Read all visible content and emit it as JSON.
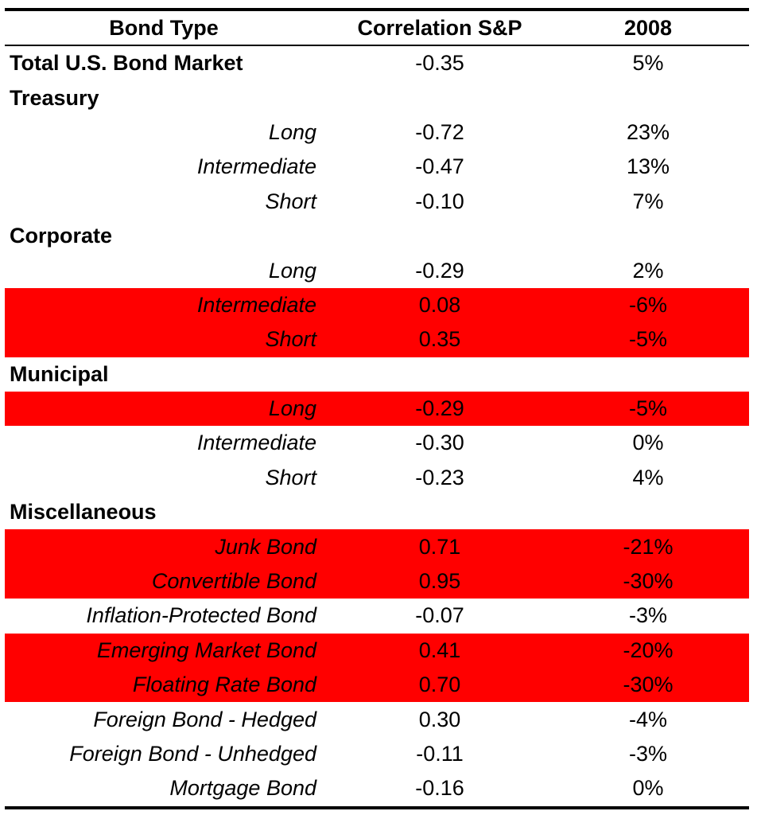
{
  "table": {
    "headers": {
      "bond_type": "Bond Type",
      "correlation": "Correlation S&P",
      "year": "2008"
    },
    "rows": [
      {
        "kind": "group",
        "name": "Total U.S. Bond Market",
        "correlation": "-0.35",
        "return": "5%",
        "highlighted": false
      },
      {
        "kind": "group",
        "name": "Treasury",
        "correlation": "",
        "return": "",
        "highlighted": false
      },
      {
        "kind": "sub",
        "name": "Long",
        "correlation": "-0.72",
        "return": "23%",
        "highlighted": false
      },
      {
        "kind": "sub",
        "name": "Intermediate",
        "correlation": "-0.47",
        "return": "13%",
        "highlighted": false
      },
      {
        "kind": "sub",
        "name": "Short",
        "correlation": "-0.10",
        "return": "7%",
        "highlighted": false
      },
      {
        "kind": "group",
        "name": "Corporate",
        "correlation": "",
        "return": "",
        "highlighted": false
      },
      {
        "kind": "sub",
        "name": "Long",
        "correlation": "-0.29",
        "return": "2%",
        "highlighted": false
      },
      {
        "kind": "sub",
        "name": "Intermediate",
        "correlation": "0.08",
        "return": "-6%",
        "highlighted": true
      },
      {
        "kind": "sub",
        "name": "Short",
        "correlation": "0.35",
        "return": "-5%",
        "highlighted": true
      },
      {
        "kind": "group",
        "name": "Municipal",
        "correlation": "",
        "return": "",
        "highlighted": false
      },
      {
        "kind": "sub",
        "name": "Long",
        "correlation": "-0.29",
        "return": "-5%",
        "highlighted": true
      },
      {
        "kind": "sub",
        "name": "Intermediate",
        "correlation": "-0.30",
        "return": "0%",
        "highlighted": false
      },
      {
        "kind": "sub",
        "name": "Short",
        "correlation": "-0.23",
        "return": "4%",
        "highlighted": false
      },
      {
        "kind": "group",
        "name": "Miscellaneous",
        "correlation": "",
        "return": "",
        "highlighted": false
      },
      {
        "kind": "sub",
        "name": "Junk Bond",
        "correlation": "0.71",
        "return": "-21%",
        "highlighted": true
      },
      {
        "kind": "sub",
        "name": "Convertible Bond",
        "correlation": "0.95",
        "return": "-30%",
        "highlighted": true
      },
      {
        "kind": "sub",
        "name": "Inflation-Protected Bond",
        "correlation": "-0.07",
        "return": "-3%",
        "highlighted": false
      },
      {
        "kind": "sub",
        "name": "Emerging Market Bond",
        "correlation": "0.41",
        "return": "-20%",
        "highlighted": true
      },
      {
        "kind": "sub",
        "name": "Floating Rate Bond",
        "correlation": "0.70",
        "return": "-30%",
        "highlighted": true
      },
      {
        "kind": "sub",
        "name": "Foreign Bond - Hedged",
        "correlation": "0.30",
        "return": "-4%",
        "highlighted": false
      },
      {
        "kind": "sub",
        "name": "Foreign Bond - Unhedged",
        "correlation": "-0.11",
        "return": "-3%",
        "highlighted": false
      },
      {
        "kind": "sub",
        "name": "Mortgage Bond",
        "correlation": "-0.16",
        "return": "0%",
        "highlighted": false
      }
    ]
  },
  "colors": {
    "highlight": "#ff0000",
    "text": "#000000",
    "rule": "#000000"
  }
}
